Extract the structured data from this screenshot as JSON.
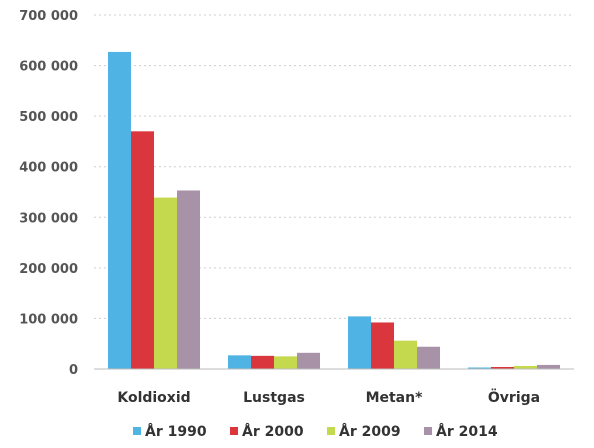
{
  "chart_data": {
    "type": "bar",
    "title": "",
    "xlabel": "",
    "ylabel": "",
    "categories": [
      "Koldioxid",
      "Lustgas",
      "Metan*",
      "Övriga"
    ],
    "series": [
      {
        "name": "År 1990",
        "color": "#4fb3e3",
        "values": [
          627000,
          27000,
          104000,
          1000
        ]
      },
      {
        "name": "År 2000",
        "color": "#d9363e",
        "values": [
          470000,
          26000,
          92000,
          4000
        ]
      },
      {
        "name": "År 2009",
        "color": "#c5d94e",
        "values": [
          339000,
          25000,
          56000,
          6000
        ]
      },
      {
        "name": "År 2014",
        "color": "#a892a8",
        "values": [
          353000,
          32000,
          44000,
          8000
        ]
      }
    ],
    "ylim": [
      0,
      700000
    ],
    "yticks": [
      0,
      100000,
      200000,
      300000,
      400000,
      500000,
      600000,
      700000
    ],
    "ytick_labels": [
      "0",
      "100 000",
      "200 000",
      "300 000",
      "400 000",
      "500 000",
      "600 000",
      "700 000"
    ],
    "grid": true,
    "legend_position": "bottom"
  }
}
